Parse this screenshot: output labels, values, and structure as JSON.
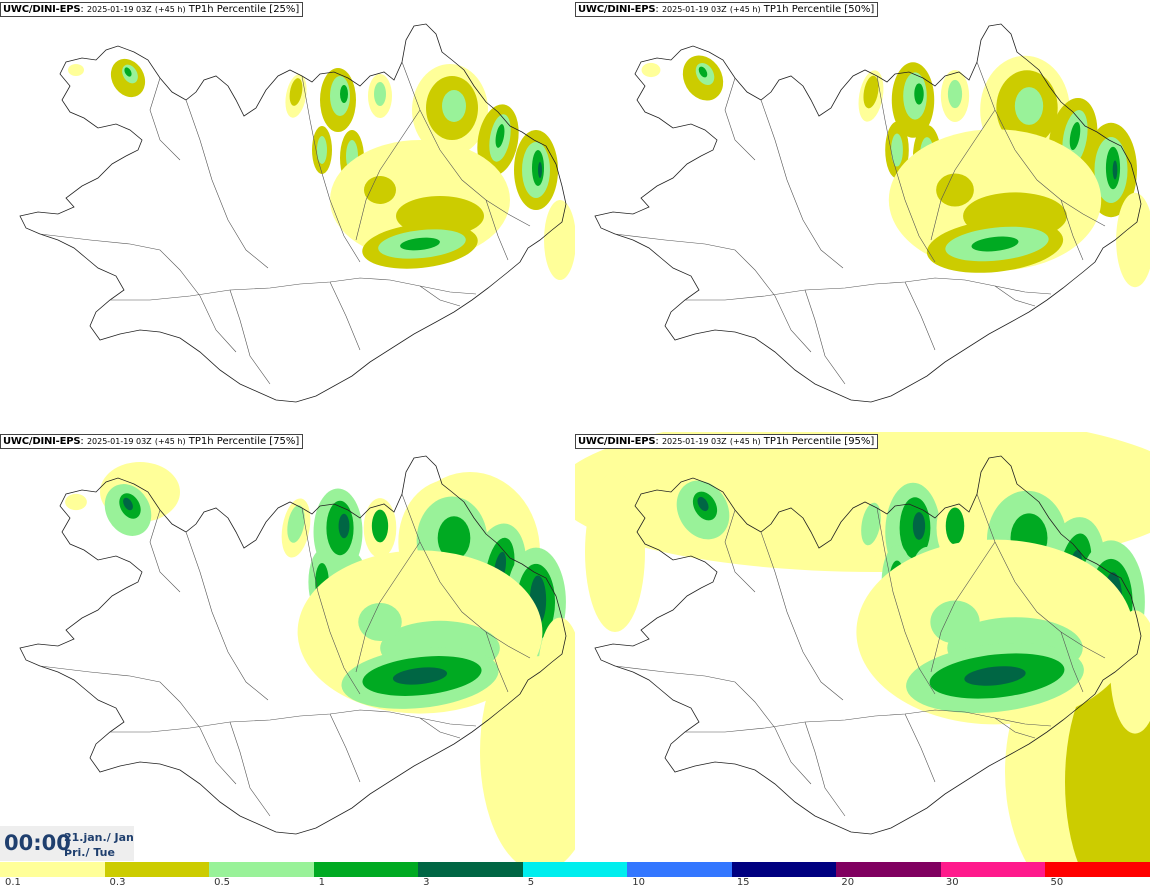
{
  "panels": [
    {
      "model": "UWC/DINI-EPS",
      "run": "2025-01-19 03Z",
      "lead": "(+45 h)",
      "field": "TP1h Percentile [25%]",
      "level": 0
    },
    {
      "model": "UWC/DINI-EPS",
      "run": "2025-01-19 03Z",
      "lead": "(+45 h)",
      "field": "TP1h Percentile [50%]",
      "level": 1
    },
    {
      "model": "UWC/DINI-EPS",
      "run": "2025-01-19 03Z",
      "lead": "(+45 h)",
      "field": "TP1h Percentile [75%]",
      "level": 2
    },
    {
      "model": "UWC/DINI-EPS",
      "run": "2025-01-19 03Z",
      "lead": "(+45 h)",
      "field": "TP1h Percentile [95%]",
      "level": 3
    }
  ],
  "valid_time": {
    "time": "00:00",
    "date": "21.jan./ Jan",
    "day": "Þri./ Tue"
  },
  "legend": {
    "colors": [
      "#ffff99",
      "#cccc00",
      "#99f299",
      "#00aa22",
      "#006644",
      "#00eeee",
      "#3377ff",
      "#000080",
      "#800060",
      "#ff1a8c",
      "#ff0000"
    ],
    "ticks": [
      "0.1",
      "0.3",
      "0.5",
      "1",
      "3",
      "5",
      "10",
      "15",
      "20",
      "30",
      "50"
    ]
  }
}
